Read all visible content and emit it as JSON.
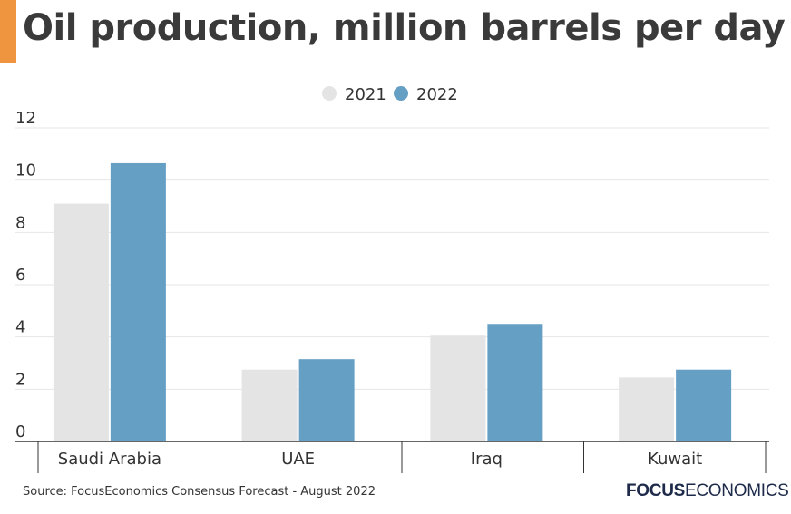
{
  "title": "Oil production, million barrels per day",
  "source": "Source: FocusEconomics Consensus Forecast - August 2022",
  "logo": {
    "bold": "FOCUS",
    "regular": "ECONOMICS"
  },
  "colors": {
    "accent": "#f0953f",
    "bar_2021": "#e4e4e4",
    "bar_2022": "#659fc4",
    "grid": "#e6e6e6",
    "axis": "#333333",
    "text": "#333333"
  },
  "chart_data": {
    "type": "bar",
    "categories": [
      "Saudi Arabia",
      "UAE",
      "Iraq",
      "Kuwait"
    ],
    "series": [
      {
        "name": "2021",
        "values": [
          9.1,
          2.75,
          4.05,
          2.45
        ]
      },
      {
        "name": "2022",
        "values": [
          10.65,
          3.15,
          4.5,
          2.75
        ]
      }
    ],
    "yticks": [
      "0",
      "2",
      "4",
      "6",
      "8",
      "10",
      "12"
    ],
    "ylim": [
      0,
      12
    ],
    "grid": true,
    "legend": "top-center"
  }
}
